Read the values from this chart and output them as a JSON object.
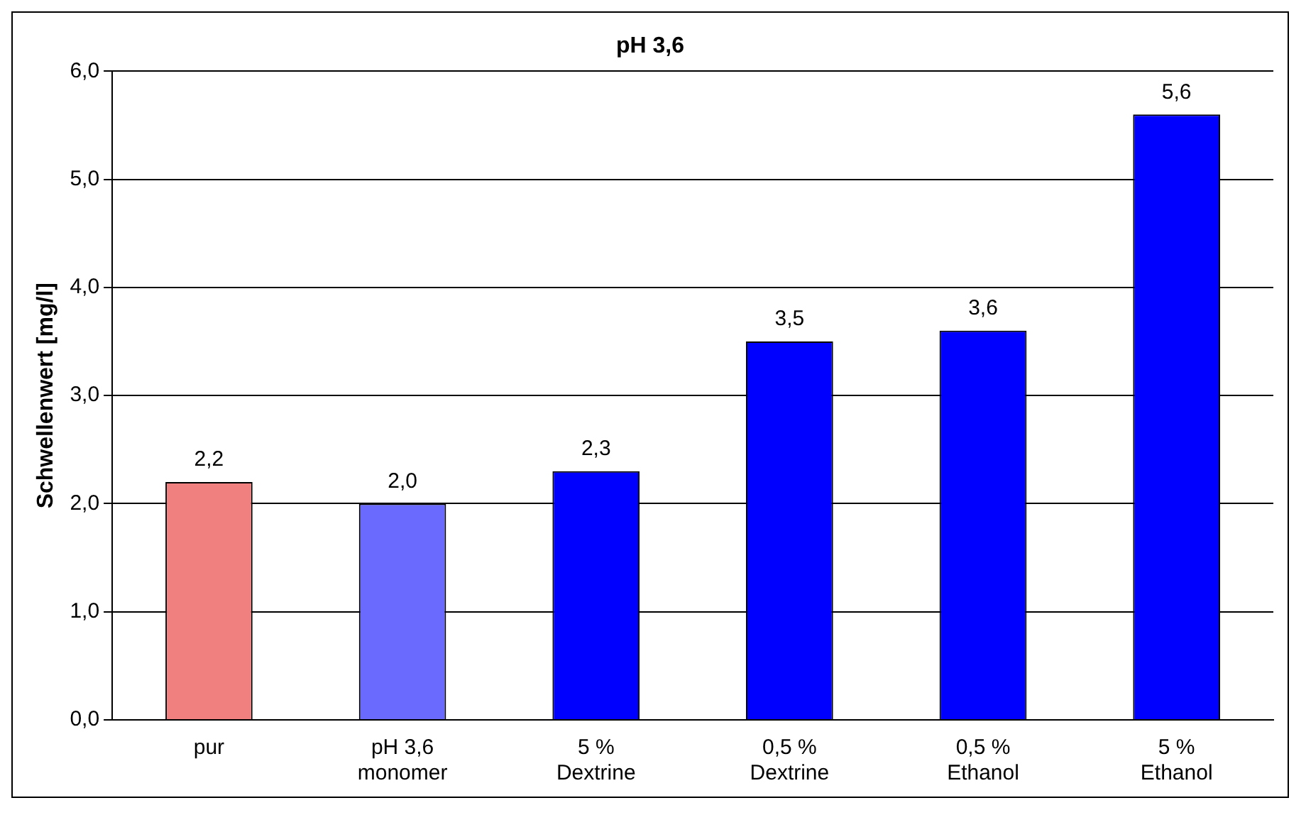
{
  "chart_data": {
    "type": "bar",
    "title": "pH 3,6",
    "ylabel": "Schwellenwert [mg/l]",
    "categories": [
      "pur",
      "pH 3,6\nmonomer",
      "5 %\nDextrine",
      "0,5 %\nDextrine",
      "0,5 %\nEthanol",
      "5 %\nEthanol"
    ],
    "values": [
      2.2,
      2.0,
      2.3,
      3.5,
      3.6,
      5.6
    ],
    "colors": [
      "#f08080",
      "#6a6aff",
      "#0000ff",
      "#0000ff",
      "#0000ff",
      "#0000ff"
    ],
    "value_labels": [
      "2,2",
      "2,0",
      "2,3",
      "3,5",
      "3,6",
      "5,6"
    ],
    "ylim": [
      0,
      6
    ],
    "yticks": [
      {
        "value": 0,
        "label": "0,0"
      },
      {
        "value": 1,
        "label": "1,0"
      },
      {
        "value": 2,
        "label": "2,0"
      },
      {
        "value": 3,
        "label": "3,0"
      },
      {
        "value": 4,
        "label": "4,0"
      },
      {
        "value": 5,
        "label": "5,0"
      },
      {
        "value": 6,
        "label": "6,0"
      }
    ],
    "grid": "y",
    "legend": false
  }
}
